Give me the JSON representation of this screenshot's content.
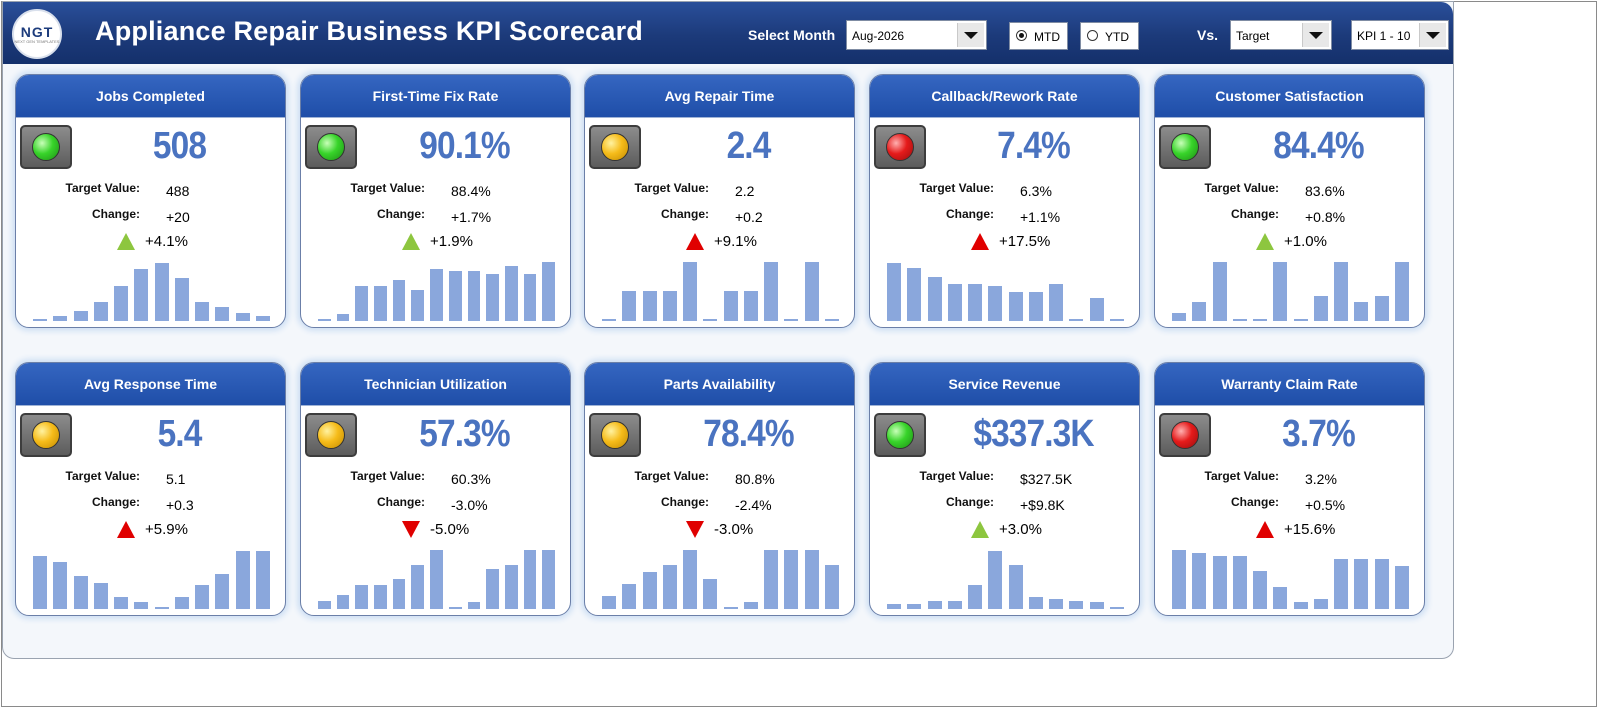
{
  "header": {
    "logo_text": "NGT",
    "logo_sub": "NEXT GEN TEMPLATES",
    "title": "Appliance Repair Business KPI Scorecard",
    "select_month_label": "Select Month",
    "month_value": "Aug-2026",
    "mtd_label": "MTD",
    "ytd_label": "YTD",
    "mtd_selected": true,
    "vs_label": "Vs.",
    "vs_value": "Target",
    "kpi_range_value": "KPI 1 - 10"
  },
  "colors": {
    "up": "#8dc63f",
    "down": "#e00000"
  },
  "cards": [
    {
      "title": "Jobs Completed",
      "light": "green",
      "value": "508",
      "target_label": "Target Value:",
      "target": "488",
      "change_label": "Change:",
      "change": "+20",
      "pct": "+4.1%",
      "dir": "up",
      "arrow_color": "#8dc63f",
      "bars": [
        0.02,
        0.08,
        0.17,
        0.31,
        0.58,
        0.87,
        0.97,
        0.71,
        0.31,
        0.24,
        0.14,
        0.09
      ]
    },
    {
      "title": "First-Time Fix Rate",
      "light": "green",
      "value": "90.1%",
      "target_label": "Target Value:",
      "target": "88.4%",
      "change_label": "Change:",
      "change": "+1.7%",
      "pct": "+1.9%",
      "dir": "up",
      "arrow_color": "#8dc63f",
      "bars": [
        0.02,
        0.11,
        0.59,
        0.59,
        0.68,
        0.51,
        0.87,
        0.83,
        0.83,
        0.78,
        0.92,
        0.78,
        0.98
      ]
    },
    {
      "title": "Avg Repair Time",
      "light": "amber",
      "value": "2.4",
      "target_label": "Target Value:",
      "target": "2.2",
      "change_label": "Change:",
      "change": "+0.2",
      "pct": "+9.1%",
      "dir": "up",
      "arrow_color": "#e00000",
      "bars": [
        0.02,
        0.5,
        0.5,
        0.5,
        0.98,
        0.02,
        0.5,
        0.5,
        0.98,
        0.02,
        0.98,
        0.02
      ]
    },
    {
      "title": "Callback/Rework Rate",
      "light": "red",
      "value": "7.4%",
      "target_label": "Target Value:",
      "target": "6.3%",
      "change_label": "Change:",
      "change": "+1.1%",
      "pct": "+17.5%",
      "dir": "up",
      "arrow_color": "#e00000",
      "bars": [
        0.96,
        0.88,
        0.73,
        0.61,
        0.61,
        0.58,
        0.49,
        0.49,
        0.61,
        0.02,
        0.38,
        0.02
      ]
    },
    {
      "title": "Customer Satisfaction",
      "light": "green",
      "value": "84.4%",
      "target_label": "Target Value:",
      "target": "83.6%",
      "change_label": "Change:",
      "change": "+0.8%",
      "pct": "+1.0%",
      "dir": "up",
      "arrow_color": "#8dc63f",
      "bars": [
        0.14,
        0.31,
        0.98,
        0.02,
        0.02,
        0.98,
        0.02,
        0.42,
        0.98,
        0.31,
        0.42,
        0.98
      ]
    },
    {
      "title": "Avg Response Time",
      "light": "amber",
      "value": "5.4",
      "target_label": "Target Value:",
      "target": "5.1",
      "change_label": "Change:",
      "change": "+0.3",
      "pct": "+5.9%",
      "dir": "up",
      "arrow_color": "#e00000",
      "bars": [
        0.88,
        0.78,
        0.55,
        0.44,
        0.2,
        0.12,
        0.02,
        0.2,
        0.4,
        0.58,
        0.96,
        0.96
      ]
    },
    {
      "title": "Technician Utilization",
      "light": "amber",
      "value": "57.3%",
      "target_label": "Target Value:",
      "target": "60.3%",
      "change_label": "Change:",
      "change": "-3.0%",
      "pct": "-5.0%",
      "dir": "down",
      "arrow_color": "#e00000",
      "bars": [
        0.14,
        0.24,
        0.4,
        0.4,
        0.5,
        0.74,
        0.98,
        0.02,
        0.12,
        0.66,
        0.74,
        0.98,
        0.98
      ]
    },
    {
      "title": "Parts Availability",
      "light": "amber",
      "value": "78.4%",
      "target_label": "Target Value:",
      "target": "80.8%",
      "change_label": "Change:",
      "change": "-2.4%",
      "pct": "-3.0%",
      "dir": "down",
      "arrow_color": "#e00000",
      "bars": [
        0.22,
        0.42,
        0.62,
        0.74,
        0.98,
        0.5,
        0.02,
        0.12,
        0.98,
        0.98,
        0.98,
        0.74
      ]
    },
    {
      "title": "Service Revenue",
      "light": "green",
      "value": "$337.3K",
      "target_label": "Target Value:",
      "target": "$327.5K",
      "change_label": "Change:",
      "change": "+$9.8K",
      "pct": "+3.0%",
      "dir": "up",
      "arrow_color": "#8dc63f",
      "bars": [
        0.08,
        0.08,
        0.13,
        0.13,
        0.4,
        0.97,
        0.74,
        0.2,
        0.17,
        0.13,
        0.12,
        0.02
      ]
    },
    {
      "title": "Warranty Claim Rate",
      "light": "red",
      "value": "3.7%",
      "target_label": "Target Value:",
      "target": "3.2%",
      "change_label": "Change:",
      "change": "+0.5%",
      "pct": "+15.6%",
      "dir": "up",
      "arrow_color": "#e00000",
      "bars": [
        0.98,
        0.94,
        0.88,
        0.88,
        0.64,
        0.36,
        0.12,
        0.16,
        0.84,
        0.84,
        0.84,
        0.72
      ]
    }
  ]
}
